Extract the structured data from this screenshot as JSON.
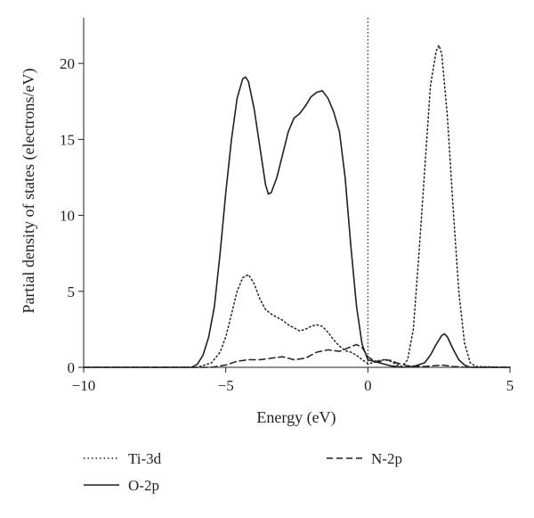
{
  "chart_data": {
    "type": "line",
    "title": "",
    "xlabel": "Energy (eV)",
    "ylabel": "Partial density of states (electrons/eV)",
    "xlim": [
      -10,
      5
    ],
    "ylim": [
      0,
      23
    ],
    "xticks": [
      -10,
      -5,
      0,
      5
    ],
    "yticks": [
      0,
      5,
      10,
      15,
      20
    ],
    "grid": false,
    "legend_position": "bottom",
    "fermi_level_marker": 0,
    "series": [
      {
        "name": "Ti-3d",
        "style": "dotted",
        "x": [
          -10,
          -6.0,
          -5.5,
          -5.2,
          -5.0,
          -4.8,
          -4.6,
          -4.4,
          -4.2,
          -4.0,
          -3.8,
          -3.6,
          -3.4,
          -3.2,
          -3.0,
          -2.8,
          -2.6,
          -2.4,
          -2.2,
          -2.0,
          -1.8,
          -1.6,
          -1.4,
          -1.2,
          -1.0,
          -0.8,
          -0.6,
          -0.4,
          -0.2,
          0.0,
          0.2,
          0.4,
          0.6,
          0.8,
          1.0,
          1.2,
          1.4,
          1.6,
          1.8,
          2.0,
          2.2,
          2.4,
          2.5,
          2.6,
          2.8,
          3.0,
          3.2,
          3.4,
          3.6,
          3.8,
          5
        ],
        "y": [
          0.0,
          0.0,
          0.3,
          1.0,
          2.0,
          3.5,
          5.0,
          5.9,
          6.1,
          5.5,
          4.5,
          3.8,
          3.5,
          3.3,
          3.1,
          2.8,
          2.6,
          2.4,
          2.5,
          2.7,
          2.8,
          2.7,
          2.3,
          1.8,
          1.4,
          1.1,
          1.0,
          0.8,
          0.5,
          0.25,
          0.3,
          0.45,
          0.5,
          0.4,
          0.2,
          0.05,
          0.5,
          2.5,
          7.5,
          13.0,
          18.5,
          20.8,
          21.2,
          20.6,
          16.5,
          10.5,
          5.0,
          1.6,
          0.3,
          0.05,
          0.0
        ]
      },
      {
        "name": "N-2p",
        "style": "dashed",
        "x": [
          -10,
          -5.5,
          -5.0,
          -4.6,
          -4.2,
          -3.8,
          -3.4,
          -3.0,
          -2.6,
          -2.2,
          -1.8,
          -1.4,
          -1.0,
          -0.6,
          -0.4,
          -0.2,
          0.0,
          0.2,
          0.4,
          0.6,
          0.8,
          1.0,
          1.4,
          2.0,
          2.6,
          3.0,
          3.5,
          5
        ],
        "y": [
          0.0,
          0.0,
          0.15,
          0.4,
          0.5,
          0.5,
          0.6,
          0.7,
          0.5,
          0.6,
          1.0,
          1.15,
          1.05,
          1.35,
          1.5,
          1.3,
          0.7,
          0.45,
          0.35,
          0.5,
          0.45,
          0.3,
          0.1,
          0.05,
          0.15,
          0.05,
          0.0,
          0.0
        ]
      },
      {
        "name": "O-2p",
        "style": "solid",
        "x": [
          -10,
          -6.2,
          -6.0,
          -5.8,
          -5.6,
          -5.4,
          -5.2,
          -5.0,
          -4.8,
          -4.6,
          -4.4,
          -4.3,
          -4.2,
          -4.0,
          -3.8,
          -3.6,
          -3.5,
          -3.4,
          -3.2,
          -3.0,
          -2.8,
          -2.6,
          -2.4,
          -2.2,
          -2.0,
          -1.8,
          -1.6,
          -1.4,
          -1.2,
          -1.0,
          -0.8,
          -0.6,
          -0.4,
          -0.2,
          0.0,
          0.2,
          0.4,
          0.6,
          0.8,
          1.0,
          1.2,
          1.6,
          2.0,
          2.2,
          2.4,
          2.6,
          2.7,
          2.8,
          3.0,
          3.2,
          3.4,
          3.6,
          5
        ],
        "y": [
          0.0,
          0.0,
          0.2,
          0.8,
          2.0,
          4.0,
          7.5,
          11.5,
          15.0,
          17.7,
          19.0,
          19.1,
          18.8,
          17.0,
          14.5,
          12.0,
          11.4,
          11.5,
          12.5,
          14.0,
          15.5,
          16.4,
          16.7,
          17.2,
          17.8,
          18.1,
          18.2,
          17.7,
          16.8,
          15.5,
          12.5,
          8.0,
          4.0,
          1.5,
          0.5,
          0.4,
          0.3,
          0.2,
          0.1,
          0.05,
          0.0,
          0.05,
          0.3,
          0.8,
          1.5,
          2.1,
          2.2,
          2.0,
          1.2,
          0.5,
          0.15,
          0.0,
          0.0
        ]
      }
    ]
  }
}
